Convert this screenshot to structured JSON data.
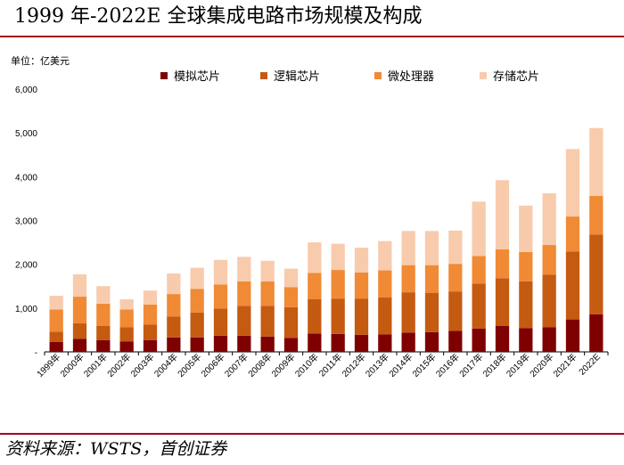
{
  "header": {
    "title": "1999 年-2022E 全球集成电路市场规模及构成"
  },
  "footer": {
    "source": "资料来源：WSTS，首创证券"
  },
  "chart_data": {
    "type": "bar",
    "stacked": true,
    "title": "1999 年-2022E 全球集成电路市场规模及构成",
    "unit_label": "单位：亿美元",
    "xlabel": "",
    "ylabel": "",
    "ylim": [
      0,
      6000
    ],
    "yticks": [
      0,
      1000,
      2000,
      3000,
      4000,
      5000,
      6000
    ],
    "ytick_labels": [
      "-",
      "1,000",
      "2,000",
      "3,000",
      "4,000",
      "5,000",
      "6,000"
    ],
    "legend_position": "top",
    "categories": [
      "1999年",
      "2000年",
      "2001年",
      "2002年",
      "2003年",
      "2004年",
      "2005年",
      "2006年",
      "2007年",
      "2008年",
      "2009年",
      "2010年",
      "2011年",
      "2012年",
      "2013年",
      "2014年",
      "2015年",
      "2016年",
      "2017年",
      "2018年",
      "2019年",
      "2020年",
      "2021年",
      "2022E"
    ],
    "series": [
      {
        "name": "模拟芯片",
        "color": "#7f0000",
        "values": [
          230,
          300,
          270,
          240,
          270,
          330,
          330,
          370,
          370,
          350,
          320,
          420,
          410,
          390,
          400,
          440,
          450,
          480,
          530,
          590,
          540,
          560,
          740,
          860
        ]
      },
      {
        "name": "逻辑芯片",
        "color": "#c55a11",
        "values": [
          230,
          350,
          320,
          320,
          350,
          480,
          570,
          620,
          680,
          700,
          700,
          780,
          800,
          820,
          840,
          920,
          900,
          900,
          1030,
          1090,
          1070,
          1200,
          1550,
          1820
        ]
      },
      {
        "name": "微处理器",
        "color": "#f08a35",
        "values": [
          510,
          610,
          510,
          410,
          460,
          510,
          540,
          550,
          560,
          560,
          460,
          600,
          660,
          600,
          620,
          620,
          630,
          630,
          630,
          660,
          670,
          680,
          800,
          880
        ]
      },
      {
        "name": "存储芯片",
        "color": "#f8cbad",
        "values": [
          310,
          510,
          400,
          230,
          320,
          470,
          480,
          560,
          560,
          470,
          420,
          700,
          600,
          570,
          670,
          780,
          780,
          760,
          1240,
          1580,
          1060,
          1180,
          1540,
          1550
        ]
      }
    ]
  }
}
